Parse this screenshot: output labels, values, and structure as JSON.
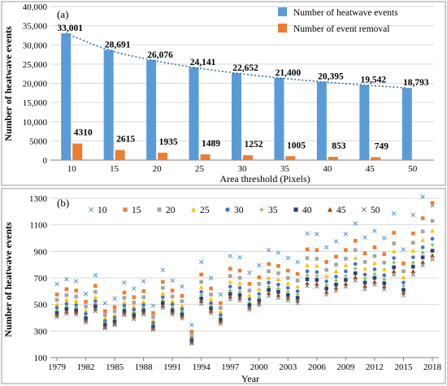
{
  "chart_data": [
    {
      "type": "bar",
      "panel_label": "(a)",
      "xlabel": "Area threshold (Pixels)",
      "ylabel": "Number of heatwave events",
      "ylim": [
        0,
        40000
      ],
      "yticks": [
        "0",
        "5000",
        "10,000",
        "15,000",
        "20,000",
        "25,000",
        "30,000",
        "35,000",
        "40,000"
      ],
      "categories": [
        "10",
        "15",
        "20",
        "25",
        "30",
        "35",
        "40",
        "45",
        "50"
      ],
      "series": [
        {
          "name": "Number of heatwave events",
          "color": "#5B9BD5",
          "values": [
            33001,
            28691,
            26076,
            24141,
            22652,
            21400,
            20395,
            19542,
            18793
          ],
          "labels": [
            "33,001",
            "28,691",
            "26,076",
            "24,141",
            "22,652",
            "21,400",
            "20,395",
            "19,542",
            "18,793"
          ]
        },
        {
          "name": "Number of event removal",
          "color": "#ED7D31",
          "values": [
            4310,
            2615,
            1935,
            1489,
            1252,
            1005,
            853,
            749,
            null
          ],
          "labels": [
            "4310",
            "2615",
            "1935",
            "1489",
            "1252",
            "1005",
            "853",
            "749",
            ""
          ]
        }
      ],
      "trendline": {
        "style": "dotted",
        "color": "#2E75B6"
      },
      "legend_position": "top-right"
    },
    {
      "type": "scatter",
      "panel_label": "(b)",
      "xlabel": "Year",
      "ylabel": "Number of heatwave events",
      "ylim": [
        100,
        1300
      ],
      "yticks": [
        "100",
        "300",
        "500",
        "700",
        "900",
        "1100",
        "1300"
      ],
      "xlim": [
        1979,
        2018
      ],
      "xticks": [
        "1979",
        "1982",
        "1985",
        "1988",
        "1991",
        "1994",
        "1997",
        "2000",
        "2003",
        "2006",
        "2009",
        "2012",
        "2015",
        "2018"
      ],
      "years": [
        1979,
        1980,
        1981,
        1982,
        1983,
        1984,
        1985,
        1986,
        1987,
        1988,
        1989,
        1990,
        1991,
        1992,
        1993,
        1994,
        1995,
        1996,
        1997,
        1998,
        1999,
        2000,
        2001,
        2002,
        2003,
        2004,
        2005,
        2006,
        2007,
        2008,
        2009,
        2010,
        2011,
        2012,
        2013,
        2014,
        2015,
        2016,
        2017,
        2018
      ],
      "series": [
        {
          "name": "10",
          "marker": "x",
          "color": "#5B9BD5",
          "values": [
            655,
            690,
            675,
            580,
            720,
            510,
            545,
            665,
            620,
            675,
            490,
            760,
            680,
            635,
            345,
            820,
            700,
            575,
            865,
            855,
            740,
            795,
            910,
            890,
            850,
            820,
            1035,
            1030,
            930,
            975,
            1030,
            1110,
            1005,
            1055,
            1000,
            1185,
            915,
            1175,
            1310,
            1245
          ]
        },
        {
          "name": "15",
          "marker": "square",
          "color": "#ED7D31",
          "values": [
            575,
            615,
            605,
            520,
            640,
            450,
            480,
            590,
            555,
            600,
            435,
            670,
            605,
            565,
            295,
            725,
            620,
            510,
            770,
            755,
            655,
            705,
            805,
            790,
            755,
            730,
            915,
            910,
            820,
            860,
            910,
            980,
            885,
            930,
            880,
            1040,
            810,
            1035,
            1150,
            1265
          ]
        },
        {
          "name": "20",
          "marker": "square",
          "color": "#A5A5A5",
          "values": [
            535,
            570,
            560,
            485,
            595,
            420,
            450,
            550,
            515,
            555,
            405,
            625,
            560,
            525,
            275,
            670,
            575,
            475,
            715,
            700,
            605,
            655,
            750,
            735,
            700,
            680,
            850,
            845,
            760,
            800,
            845,
            910,
            820,
            865,
            815,
            960,
            750,
            965,
            1050,
            1130
          ]
        },
        {
          "name": "25",
          "marker": "triangle",
          "color": "#FFC000",
          "values": [
            500,
            535,
            525,
            455,
            555,
            395,
            420,
            515,
            485,
            520,
            380,
            585,
            525,
            490,
            260,
            630,
            540,
            445,
            670,
            660,
            570,
            615,
            700,
            690,
            660,
            635,
            795,
            790,
            715,
            750,
            795,
            850,
            770,
            810,
            765,
            900,
            705,
            905,
            985,
            1055
          ]
        },
        {
          "name": "30",
          "marker": "circle",
          "color": "#4472C4",
          "values": [
            475,
            505,
            495,
            430,
            525,
            375,
            400,
            490,
            460,
            495,
            360,
            555,
            500,
            465,
            245,
            595,
            510,
            420,
            635,
            625,
            540,
            580,
            665,
            650,
            625,
            600,
            750,
            745,
            675,
            710,
            750,
            805,
            725,
            765,
            720,
            850,
            665,
            855,
            930,
            995
          ]
        },
        {
          "name": "35",
          "marker": "plus",
          "color": "#70AD47",
          "values": [
            455,
            485,
            475,
            410,
            505,
            360,
            385,
            470,
            440,
            475,
            345,
            530,
            475,
            445,
            235,
            570,
            490,
            400,
            605,
            595,
            515,
            555,
            635,
            620,
            595,
            575,
            720,
            715,
            645,
            680,
            715,
            770,
            695,
            730,
            690,
            815,
            640,
            815,
            890,
            950
          ]
        },
        {
          "name": "40",
          "marker": "square",
          "color": "#264478",
          "values": [
            435,
            465,
            455,
            395,
            485,
            345,
            370,
            450,
            420,
            455,
            330,
            510,
            455,
            425,
            225,
            545,
            470,
            385,
            580,
            570,
            495,
            530,
            610,
            595,
            570,
            550,
            690,
            685,
            620,
            650,
            685,
            735,
            665,
            700,
            660,
            780,
            610,
            785,
            855,
            905
          ]
        },
        {
          "name": "45",
          "marker": "triangle",
          "color": "#9E480E",
          "values": [
            420,
            445,
            440,
            380,
            465,
            330,
            355,
            435,
            405,
            440,
            320,
            490,
            440,
            410,
            215,
            525,
            450,
            370,
            560,
            550,
            475,
            510,
            585,
            570,
            550,
            530,
            660,
            655,
            595,
            625,
            655,
            705,
            640,
            670,
            635,
            750,
            590,
            750,
            820,
            870
          ]
        },
        {
          "name": "50",
          "marker": "x",
          "color": "#7F7F7F",
          "values": [
            405,
            430,
            425,
            365,
            450,
            320,
            345,
            420,
            390,
            425,
            310,
            475,
            425,
            395,
            205,
            505,
            435,
            355,
            540,
            530,
            460,
            495,
            565,
            550,
            530,
            510,
            640,
            635,
            575,
            605,
            635,
            680,
            615,
            650,
            615,
            725,
            570,
            725,
            795,
            840
          ]
        }
      ],
      "legend_position": "top"
    }
  ]
}
